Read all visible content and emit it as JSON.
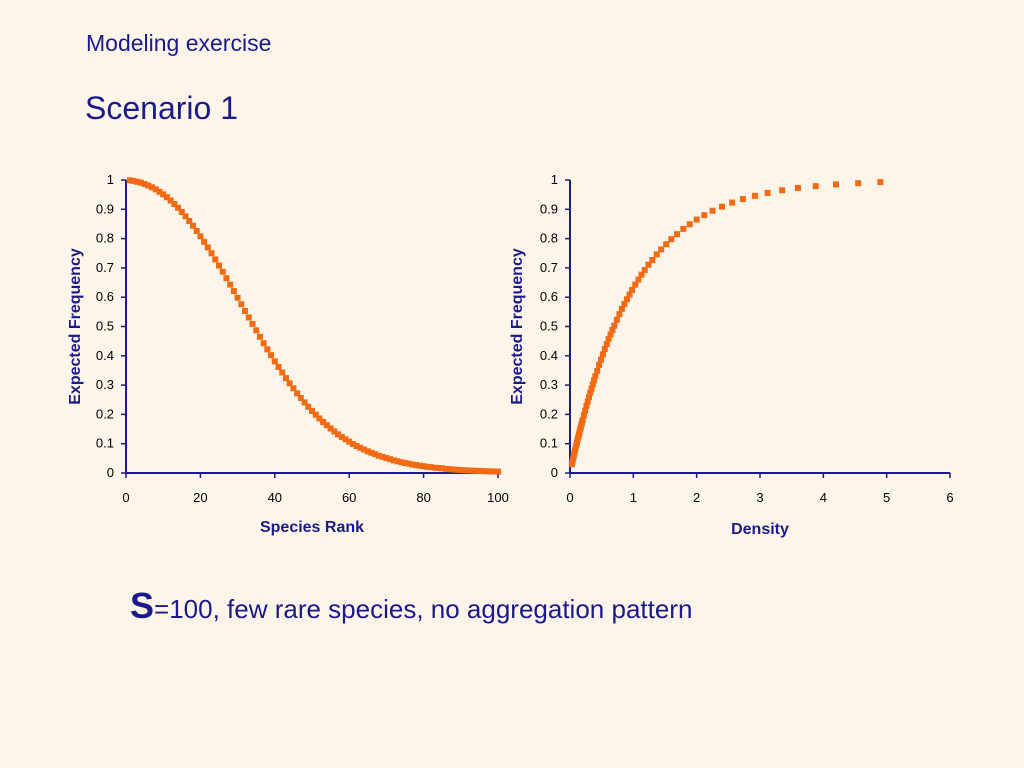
{
  "slide": {
    "header": "Modeling exercise",
    "title": "Scenario 1",
    "caption_bold": "S",
    "caption_rest": "=100, few rare species, no aggregation pattern"
  },
  "colors": {
    "marker": "#f26a14",
    "axis": "#1a1a8c",
    "background": "#fdf5ea"
  },
  "chart_data": [
    {
      "type": "scatter",
      "xlabel": "Species Rank",
      "ylabel": "Expected Frequency",
      "xlim": [
        0,
        100
      ],
      "ylim": [
        0,
        1
      ],
      "xticks": [
        "0",
        "20",
        "40",
        "60",
        "80",
        "100"
      ],
      "yticks": [
        "0",
        "0.1",
        "0.2",
        "0.3",
        "0.4",
        "0.5",
        "0.6",
        "0.7",
        "0.8",
        "0.9",
        "1"
      ],
      "series": [
        {
          "x": [
            1,
            2,
            3,
            4,
            5,
            6,
            7,
            8,
            9,
            10,
            11,
            12,
            13,
            14,
            15,
            16,
            17,
            18,
            19,
            20,
            21,
            22,
            23,
            24,
            25,
            26,
            27,
            28,
            29,
            30,
            31,
            32,
            33,
            34,
            35,
            36,
            37,
            38,
            39,
            40,
            41,
            42,
            43,
            44,
            45,
            46,
            47,
            48,
            49,
            50,
            51,
            52,
            53,
            54,
            55,
            56,
            57,
            58,
            59,
            60,
            61,
            62,
            63,
            64,
            65,
            66,
            67,
            68,
            69,
            70,
            71,
            72,
            73,
            74,
            75,
            76,
            77,
            78,
            79,
            80,
            81,
            82,
            83,
            84,
            85,
            86,
            87,
            88,
            89,
            90,
            91,
            92,
            93,
            94,
            95,
            96,
            97,
            98,
            99,
            100
          ],
          "y": [
            0.999,
            0.997,
            0.994,
            0.991,
            0.986,
            0.981,
            0.975,
            0.968,
            0.96,
            0.951,
            0.941,
            0.93,
            0.918,
            0.905,
            0.891,
            0.876,
            0.86,
            0.844,
            0.826,
            0.808,
            0.789,
            0.77,
            0.75,
            0.729,
            0.708,
            0.687,
            0.665,
            0.643,
            0.621,
            0.598,
            0.576,
            0.553,
            0.531,
            0.509,
            0.487,
            0.465,
            0.443,
            0.422,
            0.402,
            0.381,
            0.362,
            0.343,
            0.324,
            0.306,
            0.289,
            0.272,
            0.256,
            0.241,
            0.226,
            0.212,
            0.199,
            0.186,
            0.174,
            0.163,
            0.152,
            0.142,
            0.132,
            0.123,
            0.115,
            0.107,
            0.099,
            0.092,
            0.086,
            0.08,
            0.074,
            0.069,
            0.064,
            0.059,
            0.055,
            0.051,
            0.047,
            0.043,
            0.04,
            0.037,
            0.034,
            0.032,
            0.029,
            0.027,
            0.025,
            0.023,
            0.021,
            0.02,
            0.018,
            0.017,
            0.016,
            0.014,
            0.013,
            0.012,
            0.011,
            0.01,
            0.0095,
            0.0088,
            0.0081,
            0.0075,
            0.007,
            0.0065,
            0.006,
            0.0056,
            0.0052,
            0.0048
          ]
        }
      ]
    },
    {
      "type": "scatter",
      "xlabel": "Density",
      "ylabel": "Expected Frequency",
      "xlim": [
        0,
        6
      ],
      "ylim": [
        0,
        1
      ],
      "xticks": [
        "0",
        "1",
        "2",
        "3",
        "4",
        "5",
        "6"
      ],
      "yticks": [
        "0",
        "0.1",
        "0.2",
        "0.3",
        "0.4",
        "0.5",
        "0.6",
        "0.7",
        "0.8",
        "0.9",
        "1"
      ],
      "series": [
        {
          "x": [
            0.03,
            0.04,
            0.05,
            0.06,
            0.07,
            0.08,
            0.09,
            0.1,
            0.11,
            0.12,
            0.13,
            0.14,
            0.15,
            0.16,
            0.17,
            0.18,
            0.19,
            0.2,
            0.22,
            0.24,
            0.26,
            0.28,
            0.3,
            0.32,
            0.34,
            0.36,
            0.38,
            0.4,
            0.43,
            0.46,
            0.49,
            0.52,
            0.55,
            0.58,
            0.61,
            0.64,
            0.67,
            0.7,
            0.74,
            0.78,
            0.82,
            0.86,
            0.9,
            0.94,
            0.98,
            1.03,
            1.08,
            1.13,
            1.18,
            1.24,
            1.3,
            1.37,
            1.44,
            1.52,
            1.6,
            1.69,
            1.79,
            1.89,
            2.0,
            2.12,
            2.25,
            2.4,
            2.56,
            2.73,
            2.92,
            3.12,
            3.35,
            3.6,
            3.88,
            4.2,
            4.55,
            4.9
          ],
          "y": [
            0.03,
            0.039,
            0.049,
            0.058,
            0.068,
            0.077,
            0.086,
            0.095,
            0.104,
            0.113,
            0.122,
            0.131,
            0.139,
            0.148,
            0.156,
            0.165,
            0.173,
            0.181,
            0.197,
            0.213,
            0.229,
            0.244,
            0.259,
            0.274,
            0.288,
            0.302,
            0.316,
            0.33,
            0.349,
            0.369,
            0.387,
            0.405,
            0.423,
            0.44,
            0.457,
            0.473,
            0.488,
            0.503,
            0.523,
            0.542,
            0.56,
            0.577,
            0.593,
            0.609,
            0.625,
            0.643,
            0.66,
            0.677,
            0.693,
            0.711,
            0.727,
            0.746,
            0.763,
            0.781,
            0.798,
            0.815,
            0.833,
            0.849,
            0.865,
            0.88,
            0.895,
            0.909,
            0.923,
            0.935,
            0.946,
            0.956,
            0.965,
            0.973,
            0.979,
            0.985,
            0.989,
            0.993
          ]
        }
      ]
    }
  ]
}
